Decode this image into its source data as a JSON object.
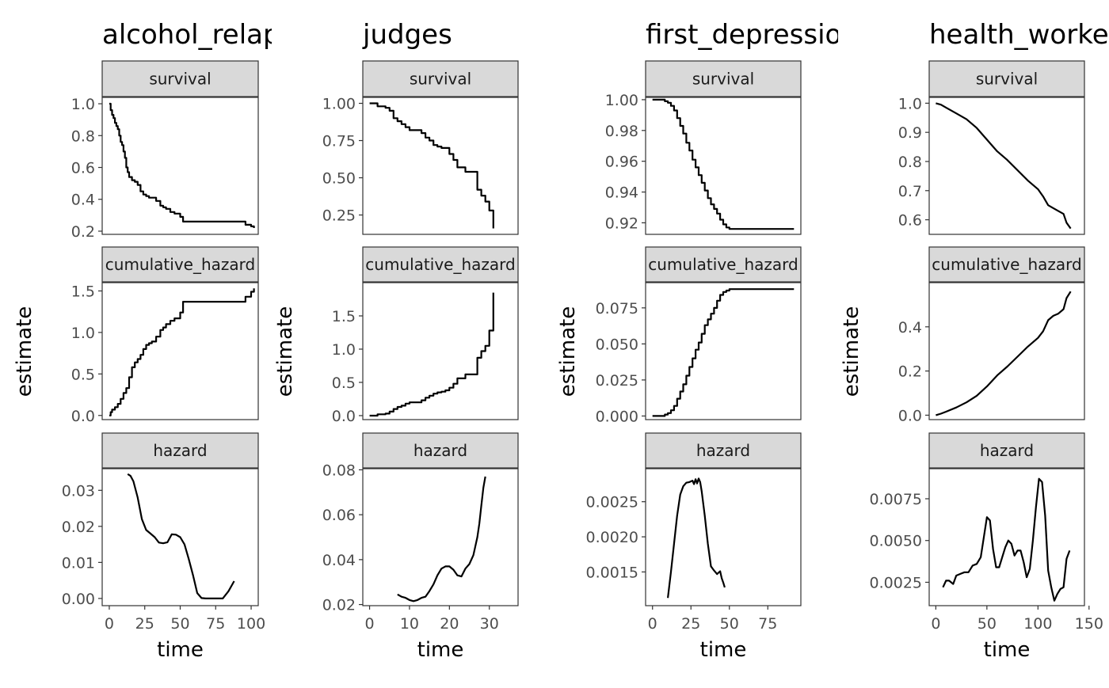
{
  "chart_data": [
    {
      "type": "line",
      "title": "alcohol_relapse",
      "xlabel": "time",
      "ylabel": "estimate",
      "xlim": [
        -5,
        105
      ],
      "xticks": [
        0,
        25,
        50,
        75,
        100
      ],
      "panels": [
        {
          "label": "survival",
          "step": true,
          "ylim": [
            0.18,
            1.04
          ],
          "yticks": [
            0.2,
            0.4,
            0.6,
            0.8,
            1.0
          ],
          "ytick_labels": [
            "0.2",
            "0.4",
            "0.6",
            "0.8",
            "1.0"
          ],
          "x": [
            0,
            1,
            2,
            3,
            4,
            5,
            6,
            7,
            8,
            9,
            10,
            11,
            12,
            13,
            14,
            16,
            18,
            20,
            22,
            24,
            26,
            28,
            30,
            33,
            36,
            38,
            40,
            43,
            46,
            50,
            52,
            54,
            70,
            80,
            90,
            96,
            100,
            102
          ],
          "values": [
            1.0,
            0.96,
            0.93,
            0.91,
            0.88,
            0.86,
            0.84,
            0.8,
            0.76,
            0.74,
            0.7,
            0.66,
            0.6,
            0.57,
            0.54,
            0.52,
            0.51,
            0.49,
            0.45,
            0.43,
            0.42,
            0.41,
            0.41,
            0.39,
            0.36,
            0.35,
            0.34,
            0.32,
            0.31,
            0.29,
            0.26,
            0.26,
            0.26,
            0.26,
            0.26,
            0.24,
            0.23,
            0.22
          ]
        },
        {
          "label": "cumulative_hazard",
          "step": true,
          "ylim": [
            -0.05,
            1.6
          ],
          "yticks": [
            0.0,
            0.5,
            1.0,
            1.5
          ],
          "ytick_labels": [
            "0.0",
            "0.5",
            "1.0",
            "1.5"
          ],
          "x": [
            0,
            1,
            2,
            4,
            6,
            8,
            10,
            12,
            14,
            16,
            18,
            20,
            22,
            24,
            26,
            28,
            30,
            33,
            36,
            38,
            40,
            43,
            46,
            50,
            52,
            54,
            70,
            80,
            90,
            96,
            100,
            102
          ],
          "values": [
            0.0,
            0.04,
            0.07,
            0.1,
            0.14,
            0.2,
            0.27,
            0.33,
            0.46,
            0.58,
            0.64,
            0.68,
            0.73,
            0.8,
            0.85,
            0.87,
            0.89,
            0.95,
            1.03,
            1.06,
            1.1,
            1.14,
            1.17,
            1.24,
            1.37,
            1.37,
            1.37,
            1.37,
            1.37,
            1.43,
            1.49,
            1.53
          ]
        },
        {
          "label": "hazard",
          "step": false,
          "ylim": [
            -0.002,
            0.036
          ],
          "yticks": [
            0.0,
            0.01,
            0.02,
            0.03
          ],
          "ytick_labels": [
            "0.00",
            "0.01",
            "0.02",
            "0.03"
          ],
          "x": [
            13,
            15,
            17,
            20,
            23,
            26,
            29,
            32,
            35,
            38,
            41,
            44,
            47,
            50,
            53,
            56,
            59,
            62,
            65,
            68,
            72,
            76,
            80,
            84,
            88
          ],
          "values": [
            0.0345,
            0.034,
            0.0325,
            0.028,
            0.022,
            0.019,
            0.018,
            0.017,
            0.0155,
            0.0153,
            0.0156,
            0.0178,
            0.0177,
            0.017,
            0.015,
            0.011,
            0.0065,
            0.0015,
            0.0001,
            0.0,
            0.0,
            0.0,
            0.0,
            0.002,
            0.0048
          ]
        }
      ]
    },
    {
      "type": "line",
      "title": "judges",
      "xlabel": "time",
      "ylabel": "estimate",
      "xlim": [
        -1.7,
        37.2
      ],
      "xticks": [
        0,
        10,
        20,
        30
      ],
      "panels": [
        {
          "label": "survival",
          "step": true,
          "ylim": [
            0.12,
            1.04
          ],
          "yticks": [
            0.25,
            0.5,
            0.75,
            1.0
          ],
          "ytick_labels": [
            "0.25",
            "0.50",
            "0.75",
            "1.00"
          ],
          "x": [
            0,
            2,
            4,
            5,
            6,
            7,
            8,
            9,
            10,
            11,
            13,
            14,
            15,
            16,
            17,
            18,
            19,
            20,
            21,
            22,
            24,
            25,
            27,
            28,
            29,
            30,
            31
          ],
          "values": [
            1.0,
            0.98,
            0.97,
            0.95,
            0.9,
            0.88,
            0.86,
            0.84,
            0.82,
            0.82,
            0.8,
            0.77,
            0.75,
            0.72,
            0.71,
            0.7,
            0.7,
            0.66,
            0.62,
            0.57,
            0.54,
            0.54,
            0.42,
            0.38,
            0.34,
            0.28,
            0.16
          ]
        },
        {
          "label": "cumulative_hazard",
          "step": true,
          "ylim": [
            -0.06,
            2.0
          ],
          "yticks": [
            0.0,
            0.5,
            1.0,
            1.5
          ],
          "ytick_labels": [
            "0.0",
            "0.5",
            "1.0",
            "1.5"
          ],
          "x": [
            0,
            2,
            4,
            5,
            6,
            7,
            8,
            9,
            10,
            11,
            13,
            14,
            15,
            16,
            17,
            18,
            19,
            20,
            21,
            22,
            24,
            25,
            27,
            28,
            29,
            30,
            31
          ],
          "values": [
            0.0,
            0.02,
            0.03,
            0.06,
            0.1,
            0.13,
            0.15,
            0.18,
            0.2,
            0.2,
            0.23,
            0.27,
            0.3,
            0.33,
            0.35,
            0.36,
            0.38,
            0.42,
            0.48,
            0.56,
            0.62,
            0.62,
            0.87,
            0.97,
            1.05,
            1.28,
            1.85
          ]
        },
        {
          "label": "hazard",
          "step": false,
          "ylim": [
            0.0195,
            0.0805
          ],
          "yticks": [
            0.02,
            0.04,
            0.06,
            0.08
          ],
          "ytick_labels": [
            "0.02",
            "0.04",
            "0.06",
            "0.08"
          ],
          "x": [
            7,
            8,
            9,
            10,
            11,
            12,
            13,
            14,
            15,
            16,
            17,
            18,
            19,
            20,
            21,
            22,
            23,
            24,
            25,
            26,
            27,
            27.5,
            28,
            28.5,
            29
          ],
          "values": [
            0.0245,
            0.0235,
            0.023,
            0.022,
            0.0215,
            0.022,
            0.023,
            0.0235,
            0.026,
            0.029,
            0.033,
            0.036,
            0.037,
            0.037,
            0.0355,
            0.033,
            0.0325,
            0.036,
            0.038,
            0.042,
            0.05,
            0.056,
            0.064,
            0.072,
            0.077
          ]
        }
      ]
    },
    {
      "type": "line",
      "title": "first_depression",
      "xlabel": "time",
      "ylabel": "estimate",
      "xlim": [
        -4.5,
        96.5
      ],
      "xticks": [
        0,
        25,
        50,
        75
      ],
      "panels": [
        {
          "label": "survival",
          "step": true,
          "ylim": [
            0.9125,
            1.0015
          ],
          "yticks": [
            0.92,
            0.94,
            0.96,
            0.98,
            1.0
          ],
          "ytick_labels": [
            "0.92",
            "0.94",
            "0.96",
            "0.98",
            "1.00"
          ],
          "x": [
            0,
            4,
            8,
            10,
            12,
            14,
            16,
            18,
            20,
            22,
            24,
            26,
            28,
            30,
            32,
            34,
            36,
            38,
            40,
            42,
            44,
            46,
            48,
            50,
            60,
            70,
            80,
            92
          ],
          "values": [
            1.0,
            1.0,
            0.999,
            0.998,
            0.996,
            0.993,
            0.988,
            0.983,
            0.978,
            0.972,
            0.967,
            0.961,
            0.956,
            0.951,
            0.946,
            0.941,
            0.936,
            0.932,
            0.929,
            0.926,
            0.922,
            0.919,
            0.917,
            0.916,
            0.916,
            0.916,
            0.916,
            0.916
          ]
        },
        {
          "label": "cumulative_hazard",
          "step": true,
          "ylim": [
            -0.0025,
            0.0925
          ],
          "yticks": [
            0.0,
            0.025,
            0.05,
            0.075
          ],
          "ytick_labels": [
            "0.000",
            "0.025",
            "0.050",
            "0.075"
          ],
          "x": [
            0,
            4,
            8,
            10,
            12,
            14,
            16,
            18,
            20,
            22,
            24,
            26,
            28,
            30,
            32,
            34,
            36,
            38,
            40,
            42,
            44,
            46,
            48,
            50,
            60,
            70,
            80,
            92
          ],
          "values": [
            0.0,
            0.0,
            0.001,
            0.002,
            0.004,
            0.007,
            0.012,
            0.017,
            0.022,
            0.028,
            0.034,
            0.04,
            0.046,
            0.051,
            0.057,
            0.063,
            0.067,
            0.071,
            0.075,
            0.08,
            0.084,
            0.086,
            0.087,
            0.088,
            0.088,
            0.088,
            0.088,
            0.088
          ]
        },
        {
          "label": "hazard",
          "step": false,
          "ylim": [
            0.00102,
            0.00297
          ],
          "yticks": [
            0.0015,
            0.002,
            0.0025
          ],
          "ytick_labels": [
            "0.0015",
            "0.0020",
            "0.0025"
          ],
          "x": [
            10,
            12,
            14,
            16,
            18,
            20,
            22,
            24,
            26,
            27,
            28,
            29,
            30,
            31,
            32,
            34,
            36,
            38,
            40,
            42,
            44,
            45,
            46,
            47
          ],
          "values": [
            0.00113,
            0.0015,
            0.0019,
            0.0023,
            0.0026,
            0.00272,
            0.00277,
            0.00278,
            0.0028,
            0.00275,
            0.00282,
            0.00276,
            0.00283,
            0.00278,
            0.00265,
            0.0023,
            0.0019,
            0.00158,
            0.00152,
            0.00147,
            0.00151,
            0.00141,
            0.00135,
            0.00128
          ]
        }
      ]
    },
    {
      "type": "line",
      "title": "health_workers",
      "xlabel": "time",
      "ylabel": "estimate",
      "xlim": [
        -6.5,
        145.5
      ],
      "xticks": [
        0,
        50,
        100,
        150
      ],
      "panels": [
        {
          "label": "survival",
          "step": false,
          "ylim": [
            0.55,
            1.02
          ],
          "yticks": [
            0.6,
            0.7,
            0.8,
            0.9,
            1.0
          ],
          "ytick_labels": [
            "0.6",
            "0.7",
            "0.8",
            "0.9",
            "1.0"
          ],
          "x": [
            0,
            5,
            10,
            20,
            30,
            40,
            50,
            60,
            70,
            80,
            90,
            100,
            105,
            110,
            115,
            120,
            125,
            128,
            132
          ],
          "values": [
            1.0,
            0.995,
            0.985,
            0.965,
            0.945,
            0.915,
            0.875,
            0.835,
            0.805,
            0.77,
            0.735,
            0.705,
            0.68,
            0.65,
            0.64,
            0.63,
            0.62,
            0.59,
            0.57
          ]
        },
        {
          "label": "cumulative_hazard",
          "step": false,
          "ylim": [
            -0.02,
            0.6
          ],
          "yticks": [
            0.0,
            0.2,
            0.4
          ],
          "ytick_labels": [
            "0.0",
            "0.2",
            "0.4"
          ],
          "x": [
            0,
            5,
            10,
            20,
            30,
            40,
            50,
            60,
            70,
            80,
            90,
            100,
            105,
            110,
            115,
            120,
            125,
            128,
            132
          ],
          "values": [
            0.0,
            0.007,
            0.016,
            0.035,
            0.058,
            0.088,
            0.13,
            0.18,
            0.22,
            0.265,
            0.31,
            0.35,
            0.38,
            0.43,
            0.45,
            0.46,
            0.48,
            0.53,
            0.56
          ]
        },
        {
          "label": "hazard",
          "step": false,
          "ylim": [
            0.0011,
            0.0093
          ],
          "yticks": [
            0.0025,
            0.005,
            0.0075
          ],
          "ytick_labels": [
            "0.0025",
            "0.0050",
            "0.0075"
          ],
          "x": [
            7,
            10,
            13,
            17,
            20,
            24,
            28,
            32,
            36,
            40,
            44,
            47,
            50,
            53,
            56,
            59,
            62,
            65,
            68,
            71,
            74,
            77,
            80,
            83,
            86,
            89,
            92,
            95,
            98,
            101,
            104,
            107,
            110,
            113,
            116,
            119,
            122,
            125,
            128,
            131
          ],
          "values": [
            0.0022,
            0.0026,
            0.0026,
            0.0024,
            0.0029,
            0.003,
            0.0031,
            0.0031,
            0.0035,
            0.0036,
            0.004,
            0.0052,
            0.0064,
            0.0062,
            0.0045,
            0.0034,
            0.0034,
            0.004,
            0.0046,
            0.005,
            0.0048,
            0.0041,
            0.0044,
            0.0044,
            0.0037,
            0.0028,
            0.0033,
            0.005,
            0.007,
            0.0087,
            0.0085,
            0.0065,
            0.0032,
            0.0022,
            0.0014,
            0.0018,
            0.0021,
            0.0022,
            0.0039,
            0.0044
          ]
        }
      ]
    }
  ]
}
